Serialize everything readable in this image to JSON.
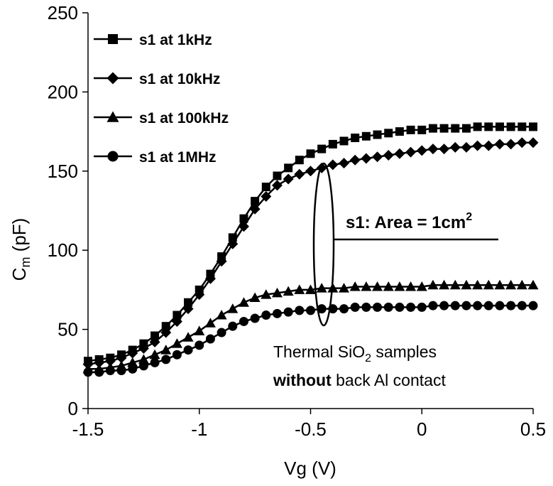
{
  "chart_data": {
    "type": "scatter",
    "title": "",
    "xlabel": "Vg (V)",
    "ylabel": {
      "main": "C",
      "sub": "m",
      "rest": " (pF)"
    },
    "xlim": [
      -1.5,
      0.5
    ],
    "ylim": [
      0,
      250
    ],
    "xticks": [
      -1.5,
      -1,
      -0.5,
      0,
      0.5
    ],
    "xtick_labels": [
      "-1.5",
      "-1",
      "-0.5",
      "0",
      "0.5"
    ],
    "yticks": [
      0,
      50,
      100,
      150,
      200,
      250
    ],
    "ytick_labels": [
      "0",
      "50",
      "100",
      "150",
      "200",
      "250"
    ],
    "grid": false,
    "legend_position": "top-left",
    "x": [
      -1.5,
      -1.45,
      -1.4,
      -1.35,
      -1.3,
      -1.25,
      -1.2,
      -1.15,
      -1.1,
      -1.05,
      -1.0,
      -0.95,
      -0.9,
      -0.85,
      -0.8,
      -0.75,
      -0.7,
      -0.65,
      -0.6,
      -0.55,
      -0.5,
      -0.45,
      -0.4,
      -0.35,
      -0.3,
      -0.25,
      -0.2,
      -0.15,
      -0.1,
      -0.05,
      0.0,
      0.05,
      0.1,
      0.15,
      0.2,
      0.25,
      0.3,
      0.35,
      0.4,
      0.45,
      0.5
    ],
    "series": [
      {
        "name": "s1 at 1kHz",
        "marker": "square",
        "values": [
          30,
          31,
          32,
          34,
          37,
          41,
          46,
          52,
          59,
          67,
          75,
          85,
          96,
          108,
          120,
          131,
          140,
          147,
          152,
          157,
          161,
          164,
          167,
          169,
          171,
          172,
          173,
          174,
          175,
          176,
          176,
          177,
          177,
          177,
          177,
          178,
          178,
          178,
          178,
          178,
          178
        ]
      },
      {
        "name": "s1 at 10kHz",
        "marker": "diamond",
        "values": [
          28,
          29,
          30,
          32,
          35,
          38,
          42,
          48,
          55,
          63,
          72,
          82,
          93,
          104,
          115,
          126,
          134,
          141,
          145,
          148,
          150,
          152,
          154,
          155,
          157,
          158,
          159,
          160,
          161,
          162,
          163,
          164,
          164,
          165,
          165,
          166,
          166,
          167,
          167,
          168,
          168
        ]
      },
      {
        "name": "s1 at 100kHz",
        "marker": "triangle",
        "values": [
          25,
          25,
          26,
          27,
          29,
          31,
          34,
          37,
          41,
          45,
          49,
          54,
          59,
          63,
          67,
          70,
          72,
          73,
          74,
          75,
          75,
          76,
          76,
          76,
          77,
          77,
          77,
          77,
          77,
          77,
          77,
          78,
          78,
          78,
          78,
          78,
          78,
          78,
          78,
          78,
          78
        ]
      },
      {
        "name": "s1 at 1MHz",
        "marker": "circle",
        "values": [
          23,
          23,
          24,
          24,
          25,
          27,
          29,
          31,
          34,
          37,
          40,
          44,
          48,
          52,
          55,
          57,
          59,
          60,
          61,
          62,
          62,
          63,
          63,
          63,
          64,
          64,
          64,
          64,
          64,
          64,
          64,
          65,
          65,
          65,
          65,
          65,
          65,
          65,
          65,
          65,
          65
        ]
      }
    ],
    "annotations": {
      "area_label_prefix": "s1: Area = 1cm",
      "area_label_sup": "2",
      "note_line1_pre": "Thermal SiO",
      "note_line1_sub": "2",
      "note_line1_post": " samples",
      "note_line2_bold": "without",
      "note_line2_rest": " back Al contact"
    }
  }
}
